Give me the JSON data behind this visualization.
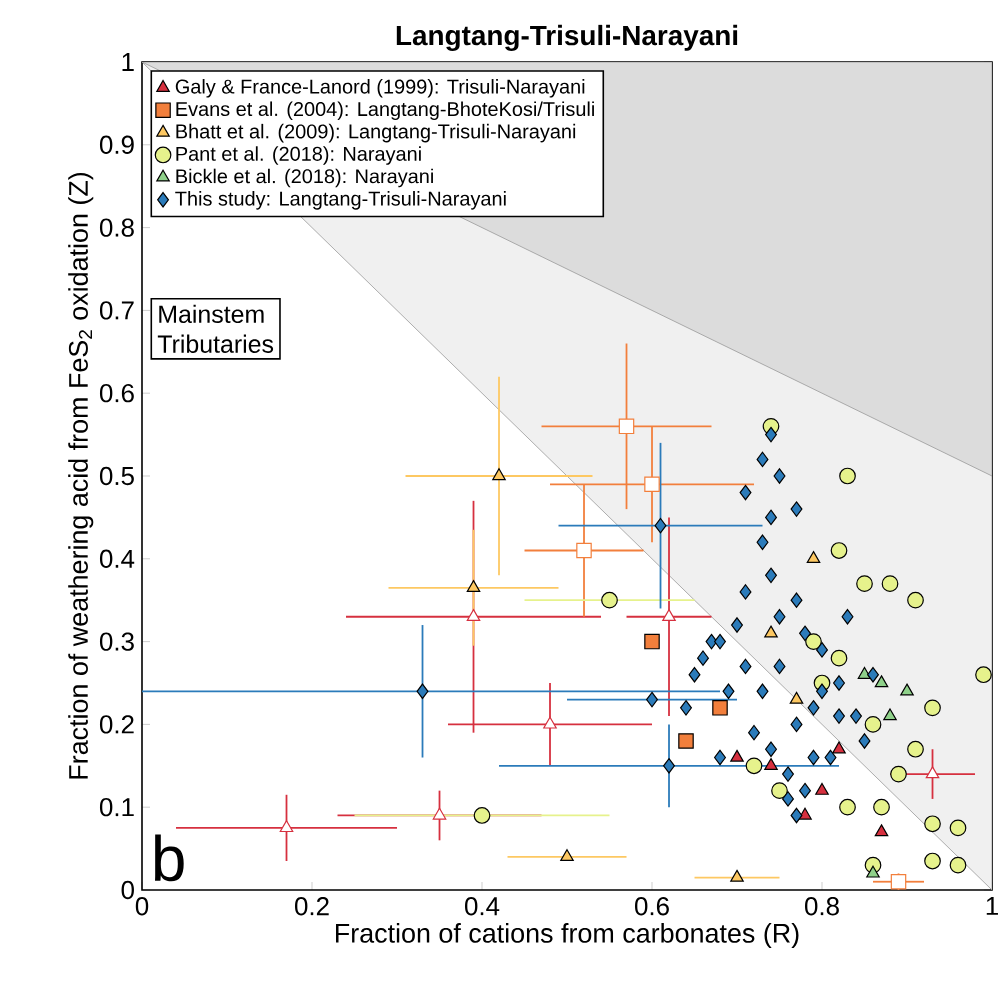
{
  "chart_data": {
    "type": "scatter",
    "title": "Langtang-Trisuli-Narayani",
    "xlabel": "Fraction of cations from carbonates (R)",
    "ylabel": "Fraction of weathering acid from FeS$_{2}$ oxidation (Z)",
    "xlim": [
      0,
      1
    ],
    "ylim": [
      0,
      1
    ],
    "xticks": [
      0,
      0.2,
      0.4,
      0.6,
      0.8,
      1
    ],
    "yticks": [
      0,
      0.1,
      0.2,
      0.3,
      0.4,
      0.5,
      0.6,
      0.7,
      0.8,
      0.9,
      1
    ],
    "legend": "top left",
    "grid": false,
    "annotations": [
      "b",
      "Mainstem",
      "Tributaries"
    ],
    "series": [
      {
        "type": "area",
        "color": "#f0f0f0",
        "x": [
          0,
          1
        ],
        "values": [
          1,
          0
        ]
      },
      {
        "type": "area",
        "color": "#dcdcdc",
        "x": [
          0,
          1
        ],
        "values": [
          1,
          0.5
        ]
      },
      {
        "name": "Galy & France-Lanord (1999): Trisuli-Narayani",
        "color": "#d6303f",
        "marker": "triangle",
        "x": [
          0.78,
          0.74,
          0.82,
          0.87,
          0.7,
          0.8
        ],
        "values": [
          0.09,
          0.15,
          0.17,
          0.07,
          0.16,
          0.12
        ]
      },
      {
        "color": "#d6303f",
        "marker": "triangle",
        "x": [
          0.17,
          0.35,
          0.48,
          0.39,
          0.62,
          0.93
        ],
        "values": [
          0.075,
          0.09,
          0.2,
          0.33,
          0.33,
          0.14
        ],
        "xerrors": [
          0.13,
          0.12,
          0.12,
          0.15,
          0.05,
          0.05
        ],
        "errors": [
          0.04,
          0.03,
          0.05,
          0.14,
          0.12,
          0.03
        ]
      },
      {
        "name": "Evans et al. (2004): Langtang-BhoteKosi/Trisuli",
        "color": "#f27f3c",
        "marker": "square",
        "x": [
          0.64,
          0.6,
          0.68
        ],
        "values": [
          0.18,
          0.3,
          0.22
        ]
      },
      {
        "color": "#f27f3c",
        "marker": "square",
        "x": [
          0.57,
          0.6,
          0.52,
          0.89
        ],
        "values": [
          0.56,
          0.49,
          0.41,
          0.01
        ],
        "xerrors": [
          0.1,
          0.12,
          0.07,
          0.03
        ],
        "errors": [
          0.1,
          0.07,
          0.08,
          0.01
        ]
      },
      {
        "name": "Bhatt et al. (2009): Langtang-Trisuli-Narayani",
        "color": "#fdc862",
        "marker": "triangle",
        "x": [
          0.42,
          0.39,
          0.5,
          0.7,
          0.74,
          0.79,
          0.77
        ],
        "values": [
          0.5,
          0.365,
          0.04,
          0.015,
          0.31,
          0.4,
          0.23
        ],
        "xerrors": [
          0.11,
          0.1,
          0.07,
          0.05,
          null,
          null,
          null
        ],
        "errors": [
          0.12,
          0.07,
          null,
          null,
          null,
          null,
          null
        ]
      },
      {
        "name": "Pant et al. (2018): Narayani",
        "color": "#e6f28c",
        "marker": "circle",
        "x": [
          0.4,
          0.55,
          0.83,
          0.82,
          0.85,
          0.88,
          0.91,
          0.74,
          0.93,
          0.96,
          0.93,
          0.96,
          0.86,
          0.99,
          0.83,
          0.87,
          0.8,
          0.86,
          0.89,
          0.91,
          0.75,
          0.93,
          0.79,
          0.82,
          0.72
        ],
        "values": [
          0.09,
          0.35,
          0.5,
          0.41,
          0.37,
          0.37,
          0.35,
          0.56,
          0.08,
          0.075,
          0.035,
          0.03,
          0.03,
          0.26,
          0.1,
          0.1,
          0.25,
          0.2,
          0.14,
          0.17,
          0.12,
          0.22,
          0.3,
          0.28,
          0.15
        ],
        "xerrors": [
          0.15,
          0.1,
          null,
          null,
          null,
          null,
          null,
          null,
          null,
          null,
          null,
          null,
          null,
          null,
          null,
          null,
          null,
          null,
          null,
          null,
          null,
          null,
          null,
          null,
          null
        ]
      },
      {
        "name": "Bickle et al. (2018): Narayani",
        "color": "#8fd18a",
        "marker": "triangle",
        "x": [
          0.86,
          0.87,
          0.9,
          0.88,
          0.85
        ],
        "values": [
          0.02,
          0.25,
          0.24,
          0.21,
          0.26
        ]
      },
      {
        "name": "This study: Langtang-Trisuli-Narayani",
        "color": "#2b7bba",
        "marker": "diamond",
        "x": [
          0.33,
          0.61,
          0.6,
          0.62,
          0.68,
          0.74,
          0.73,
          0.75,
          0.71,
          0.77,
          0.74,
          0.73,
          0.7,
          0.67,
          0.75,
          0.78,
          0.8,
          0.83,
          0.86,
          0.82,
          0.79,
          0.77,
          0.71,
          0.69,
          0.66,
          0.64,
          0.72,
          0.74,
          0.76,
          0.78,
          0.81,
          0.84,
          0.85,
          0.74,
          0.71,
          0.77,
          0.8,
          0.75,
          0.68,
          0.73,
          0.65,
          0.79,
          0.82,
          0.76,
          0.77
        ],
        "values": [
          0.24,
          0.44,
          0.23,
          0.15,
          0.16,
          0.55,
          0.52,
          0.5,
          0.48,
          0.46,
          0.45,
          0.42,
          0.32,
          0.3,
          0.33,
          0.31,
          0.29,
          0.33,
          0.26,
          0.25,
          0.22,
          0.2,
          0.27,
          0.24,
          0.28,
          0.22,
          0.19,
          0.17,
          0.14,
          0.12,
          0.16,
          0.21,
          0.18,
          0.38,
          0.36,
          0.35,
          0.24,
          0.27,
          0.3,
          0.24,
          0.26,
          0.16,
          0.21,
          0.11,
          0.09
        ],
        "xerrors": [
          0.35,
          0.12,
          0.1,
          0.2,
          null,
          null,
          null,
          null,
          null,
          null,
          null,
          null,
          null,
          null,
          null,
          null,
          null,
          null,
          null,
          null,
          null,
          null,
          null,
          null,
          null,
          null,
          null,
          null,
          null,
          null,
          null,
          null,
          null,
          null,
          null,
          null,
          null,
          null,
          null,
          null,
          null,
          null,
          null,
          null,
          null
        ],
        "errors": [
          0.08,
          0.1,
          null,
          0.05,
          null,
          null,
          null,
          null,
          null,
          null,
          null,
          null,
          null,
          null,
          null,
          null,
          null,
          null,
          null,
          null,
          null,
          null,
          null,
          null,
          null,
          null,
          null,
          null,
          null,
          null,
          null,
          null,
          null,
          null,
          null,
          null,
          null,
          null,
          null,
          null,
          null,
          null,
          null,
          null,
          null
        ]
      }
    ]
  }
}
